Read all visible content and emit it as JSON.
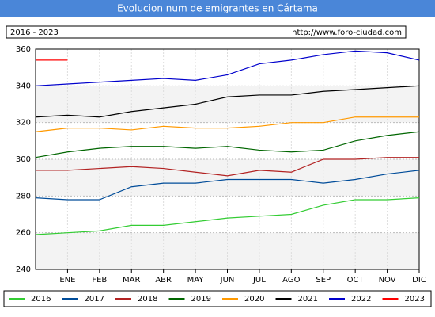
{
  "chart_data": {
    "type": "line",
    "title": "Evolucion num de emigrantes en Cártama",
    "subtitle": "2016 - 2023",
    "source": "http://www.foro-ciudad.com",
    "categories": [
      null,
      "ENE",
      "FEB",
      "MAR",
      "ABR",
      "MAY",
      "JUN",
      "JUL",
      "AGO",
      "SEP",
      "OCT",
      "NOV",
      "DIC"
    ],
    "series": [
      {
        "name": "2016",
        "color": "#33cc33",
        "values": [
          259,
          260,
          261,
          264,
          264,
          266,
          268,
          269,
          270,
          275,
          278,
          278,
          279
        ]
      },
      {
        "name": "2017",
        "color": "#004c99",
        "values": [
          279,
          278,
          278,
          285,
          287,
          287,
          289,
          289,
          289,
          287,
          289,
          292,
          294
        ]
      },
      {
        "name": "2018",
        "color": "#b22222",
        "values": [
          294,
          294,
          295,
          296,
          295,
          293,
          291,
          294,
          293,
          300,
          300,
          301,
          301
        ]
      },
      {
        "name": "2019",
        "color": "#006600",
        "values": [
          301,
          304,
          306,
          307,
          307,
          306,
          307,
          305,
          304,
          305,
          310,
          313,
          315
        ]
      },
      {
        "name": "2020",
        "color": "#ff9900",
        "values": [
          315,
          317,
          317,
          316,
          318,
          317,
          317,
          318,
          320,
          320,
          323,
          323,
          323
        ]
      },
      {
        "name": "2021",
        "color": "#000000",
        "values": [
          323,
          324,
          323,
          326,
          328,
          330,
          334,
          335,
          335,
          337,
          338,
          339,
          340
        ]
      },
      {
        "name": "2022",
        "color": "#0000cc",
        "values": [
          340,
          341,
          342,
          343,
          344,
          343,
          346,
          352,
          354,
          357,
          359,
          358,
          354
        ]
      },
      {
        "name": "2023",
        "color": "#ff0000",
        "values": [
          354,
          354,
          null,
          null,
          null,
          null,
          null,
          null,
          null,
          null,
          null,
          null,
          null
        ]
      }
    ],
    "ylim": [
      240,
      360
    ],
    "yticks": [
      240,
      260,
      280,
      300,
      320,
      340,
      360
    ],
    "grid": true
  }
}
